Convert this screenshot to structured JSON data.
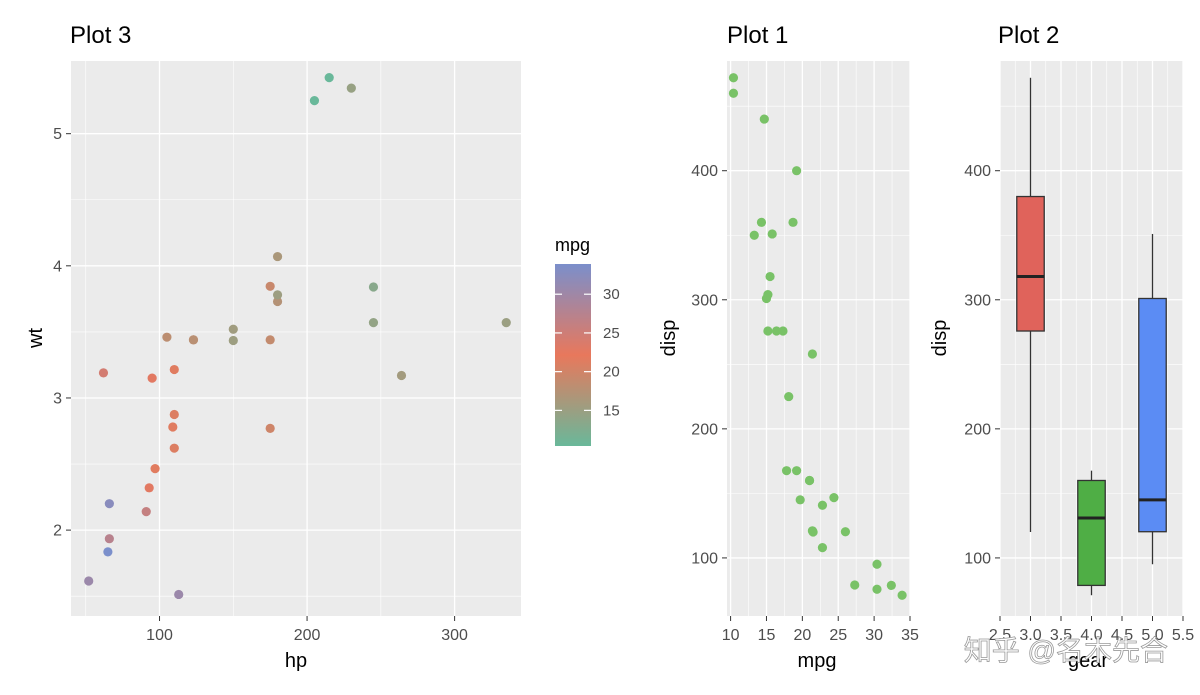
{
  "chart_data": [
    {
      "id": "p3",
      "type": "scatter",
      "title": "Plot 3",
      "xlabel": "hp",
      "ylabel": "wt",
      "xlim": [
        40,
        345
      ],
      "ylim": [
        1.35,
        5.55
      ],
      "xticks": [
        100,
        200,
        300
      ],
      "yticks": [
        2,
        3,
        4,
        5
      ],
      "xminor": [
        50,
        150,
        250
      ],
      "yminor": [
        1.5,
        2.5,
        3.5,
        4.5
      ],
      "grid": true,
      "color_by": "mpg",
      "points": [
        {
          "x": 110,
          "y": 2.62,
          "c": 21.0
        },
        {
          "x": 110,
          "y": 2.875,
          "c": 21.0
        },
        {
          "x": 93,
          "y": 2.32,
          "c": 22.8
        },
        {
          "x": 110,
          "y": 3.215,
          "c": 21.4
        },
        {
          "x": 175,
          "y": 3.44,
          "c": 18.7
        },
        {
          "x": 105,
          "y": 3.46,
          "c": 18.1
        },
        {
          "x": 245,
          "y": 3.57,
          "c": 14.3
        },
        {
          "x": 62,
          "y": 3.19,
          "c": 24.4
        },
        {
          "x": 95,
          "y": 3.15,
          "c": 22.8
        },
        {
          "x": 123,
          "y": 3.44,
          "c": 19.2
        },
        {
          "x": 123,
          "y": 3.44,
          "c": 17.8
        },
        {
          "x": 180,
          "y": 4.07,
          "c": 16.4
        },
        {
          "x": 180,
          "y": 3.73,
          "c": 17.3
        },
        {
          "x": 180,
          "y": 3.78,
          "c": 15.2
        },
        {
          "x": 205,
          "y": 5.25,
          "c": 10.4
        },
        {
          "x": 215,
          "y": 5.424,
          "c": 10.4
        },
        {
          "x": 230,
          "y": 5.345,
          "c": 14.7
        },
        {
          "x": 66,
          "y": 2.2,
          "c": 32.4
        },
        {
          "x": 52,
          "y": 1.615,
          "c": 30.4
        },
        {
          "x": 65,
          "y": 1.835,
          "c": 33.9
        },
        {
          "x": 97,
          "y": 2.465,
          "c": 21.5
        },
        {
          "x": 150,
          "y": 3.52,
          "c": 15.5
        },
        {
          "x": 150,
          "y": 3.435,
          "c": 15.2
        },
        {
          "x": 245,
          "y": 3.84,
          "c": 13.3
        },
        {
          "x": 175,
          "y": 3.845,
          "c": 19.2
        },
        {
          "x": 66,
          "y": 1.935,
          "c": 27.3
        },
        {
          "x": 91,
          "y": 2.14,
          "c": 26.0
        },
        {
          "x": 113,
          "y": 1.513,
          "c": 30.4
        },
        {
          "x": 264,
          "y": 3.17,
          "c": 15.8
        },
        {
          "x": 175,
          "y": 2.77,
          "c": 19.7
        },
        {
          "x": 335,
          "y": 3.57,
          "c": 15.0
        },
        {
          "x": 109,
          "y": 2.78,
          "c": 21.4
        }
      ],
      "legend": {
        "title": "mpg",
        "labels": [
          "15",
          "20",
          "25",
          "30"
        ],
        "values": [
          15,
          20,
          25,
          30
        ],
        "range": [
          10.4,
          33.9
        ],
        "colors_low_to_high": [
          "#69b89a",
          "#e8785c",
          "#7b8fcb"
        ]
      }
    },
    {
      "id": "p1",
      "type": "scatter",
      "title": "Plot 1",
      "xlabel": "mpg",
      "ylabel": "disp",
      "xlim": [
        9.5,
        35
      ],
      "ylim": [
        55,
        485
      ],
      "xticks": [
        10,
        15,
        20,
        25,
        30,
        35
      ],
      "yticks": [
        100,
        200,
        300,
        400
      ],
      "xminor": [
        12.5,
        17.5,
        22.5,
        27.5,
        32.5
      ],
      "yminor": [
        150,
        250,
        350,
        450
      ],
      "grid": true,
      "point_color": "#79c267",
      "points": [
        {
          "x": 21.0,
          "y": 160
        },
        {
          "x": 21.0,
          "y": 160
        },
        {
          "x": 22.8,
          "y": 108
        },
        {
          "x": 21.4,
          "y": 258
        },
        {
          "x": 18.7,
          "y": 360
        },
        {
          "x": 18.1,
          "y": 225
        },
        {
          "x": 14.3,
          "y": 360
        },
        {
          "x": 24.4,
          "y": 146.7
        },
        {
          "x": 22.8,
          "y": 140.8
        },
        {
          "x": 19.2,
          "y": 167.6
        },
        {
          "x": 17.8,
          "y": 167.6
        },
        {
          "x": 16.4,
          "y": 275.8
        },
        {
          "x": 17.3,
          "y": 275.8
        },
        {
          "x": 15.2,
          "y": 275.8
        },
        {
          "x": 10.4,
          "y": 472
        },
        {
          "x": 10.4,
          "y": 460
        },
        {
          "x": 14.7,
          "y": 440
        },
        {
          "x": 32.4,
          "y": 78.7
        },
        {
          "x": 30.4,
          "y": 75.7
        },
        {
          "x": 33.9,
          "y": 71.1
        },
        {
          "x": 21.5,
          "y": 120.1
        },
        {
          "x": 15.5,
          "y": 318
        },
        {
          "x": 15.2,
          "y": 304
        },
        {
          "x": 13.3,
          "y": 350
        },
        {
          "x": 19.2,
          "y": 400
        },
        {
          "x": 27.3,
          "y": 79
        },
        {
          "x": 26.0,
          "y": 120.3
        },
        {
          "x": 30.4,
          "y": 95.1
        },
        {
          "x": 15.8,
          "y": 351
        },
        {
          "x": 19.7,
          "y": 145
        },
        {
          "x": 15.0,
          "y": 301
        },
        {
          "x": 21.4,
          "y": 121
        }
      ]
    },
    {
      "id": "p2",
      "type": "box",
      "title": "Plot 2",
      "xlabel": "gear",
      "ylabel": "disp",
      "xlim": [
        2.5,
        5.5
      ],
      "ylim": [
        55,
        485
      ],
      "xticks": [
        2.5,
        3.0,
        3.5,
        4.0,
        4.5,
        5.0,
        5.5
      ],
      "xtick_labels": [
        "2.5",
        "3.0",
        "3.5",
        "4.0",
        "4.5",
        "5.0",
        "5.5"
      ],
      "xminor": [
        2.75,
        3.25,
        3.75,
        4.25,
        4.75,
        5.25
      ],
      "yticks": [
        100,
        200,
        300,
        400
      ],
      "yminor": [
        150,
        250,
        350,
        450
      ],
      "grid": true,
      "box_width": 0.45,
      "boxes": [
        {
          "x": 3,
          "min": 120.1,
          "q1": 275.8,
          "median": 318,
          "q3": 380,
          "max": 472,
          "color": "#e0635b"
        },
        {
          "x": 4,
          "min": 71.1,
          "q1": 78.7,
          "median": 130.9,
          "q3": 160,
          "max": 167.6,
          "color": "#4fae45"
        },
        {
          "x": 5,
          "min": 95.1,
          "q1": 120.3,
          "median": 145,
          "q3": 301,
          "max": 351,
          "color": "#5b8cf4"
        }
      ]
    }
  ],
  "watermark": "知乎 @名木先合"
}
